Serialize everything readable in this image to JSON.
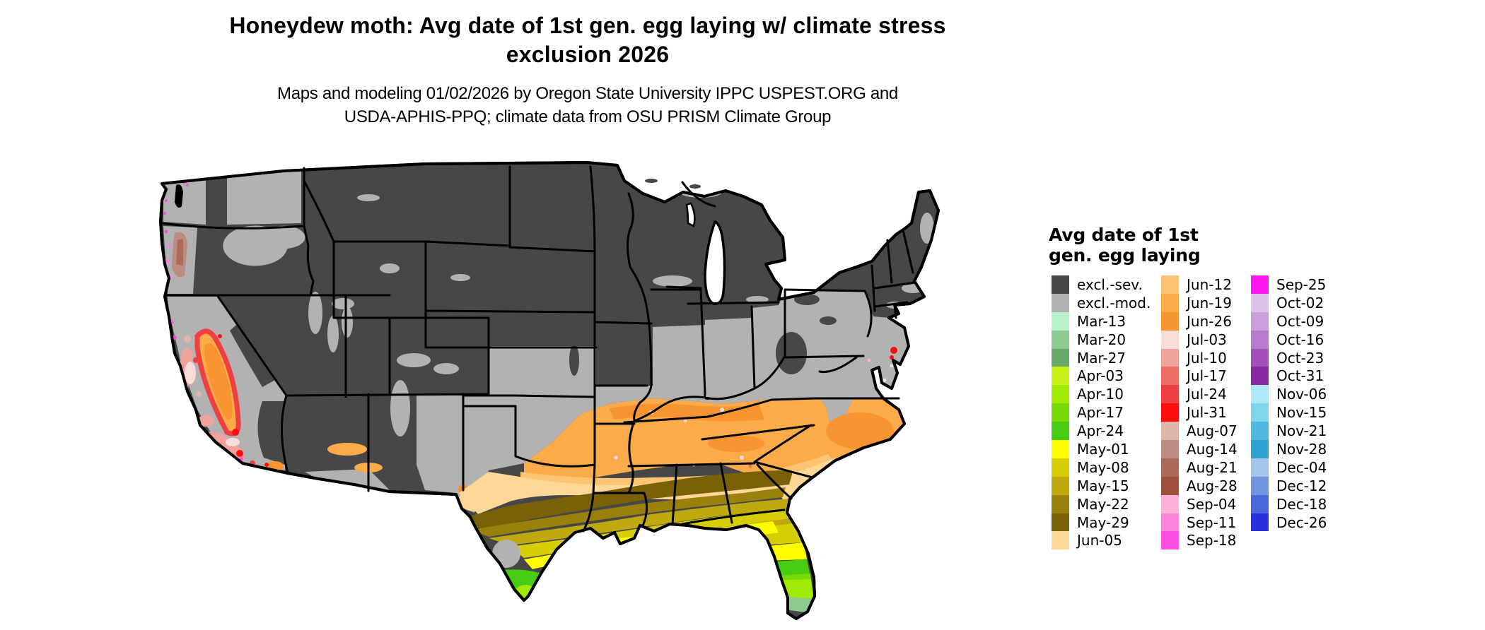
{
  "title": {
    "line1": "Honeydew moth: Avg date of 1st gen. egg laying w/ climate stress",
    "line2": "exclusion 2026"
  },
  "subtitle": {
    "line1": "Maps and modeling 01/02/2026 by Oregon State University IPPC USPEST.ORG and",
    "line2": "USDA-APHIS-PPQ; climate data from OSU PRISM Climate Group"
  },
  "legend": {
    "title_line1": "Avg date of 1st",
    "title_line2": "gen. egg laying",
    "columns": [
      [
        {
          "label": "excl.-sev.",
          "color": "#474747"
        },
        {
          "label": "excl.-mod.",
          "color": "#b2b2b2"
        },
        {
          "label": "Mar-13",
          "color": "#b9f1c9"
        },
        {
          "label": "Mar-20",
          "color": "#8ecb92"
        },
        {
          "label": "Mar-27",
          "color": "#68a96a"
        },
        {
          "label": "Apr-03",
          "color": "#c9f21a"
        },
        {
          "label": "Apr-10",
          "color": "#a0ea05"
        },
        {
          "label": "Apr-17",
          "color": "#79d907"
        },
        {
          "label": "Apr-24",
          "color": "#46cc10"
        },
        {
          "label": "May-01",
          "color": "#fdfd00"
        },
        {
          "label": "May-08",
          "color": "#d8cd05"
        },
        {
          "label": "May-15",
          "color": "#bfa90e"
        },
        {
          "label": "May-22",
          "color": "#9a810b"
        },
        {
          "label": "May-29",
          "color": "#7a6108"
        },
        {
          "label": "Jun-05",
          "color": "#fcd795"
        }
      ],
      [
        {
          "label": "Jun-12",
          "color": "#fdc573"
        },
        {
          "label": "Jun-19",
          "color": "#fcab4b"
        },
        {
          "label": "Jun-26",
          "color": "#f89530"
        },
        {
          "label": "Jul-03",
          "color": "#f7dcda"
        },
        {
          "label": "Jul-10",
          "color": "#f0a29d"
        },
        {
          "label": "Jul-17",
          "color": "#ec6e66"
        },
        {
          "label": "Jul-24",
          "color": "#ee4040"
        },
        {
          "label": "Jul-31",
          "color": "#fd0d0d"
        },
        {
          "label": "Aug-07",
          "color": "#dfb4a9"
        },
        {
          "label": "Aug-14",
          "color": "#bd8b80"
        },
        {
          "label": "Aug-21",
          "color": "#aa6b5a"
        },
        {
          "label": "Aug-28",
          "color": "#9f5140"
        },
        {
          "label": "Sep-04",
          "color": "#fbb4d8"
        },
        {
          "label": "Sep-11",
          "color": "#fb84dd"
        },
        {
          "label": "Sep-18",
          "color": "#fa50e2"
        }
      ],
      [
        {
          "label": "Sep-25",
          "color": "#fc17ef"
        },
        {
          "label": "Oct-02",
          "color": "#dcc3e9"
        },
        {
          "label": "Oct-09",
          "color": "#c9a0dc"
        },
        {
          "label": "Oct-16",
          "color": "#b77bce"
        },
        {
          "label": "Oct-23",
          "color": "#a34fbc"
        },
        {
          "label": "Oct-31",
          "color": "#8a28a6"
        },
        {
          "label": "Nov-06",
          "color": "#ade9f9"
        },
        {
          "label": "Nov-15",
          "color": "#7fd4ee"
        },
        {
          "label": "Nov-21",
          "color": "#51b8e0"
        },
        {
          "label": "Nov-28",
          "color": "#2ea3d3"
        },
        {
          "label": "Dec-04",
          "color": "#a4c5e8"
        },
        {
          "label": "Dec-12",
          "color": "#7295de"
        },
        {
          "label": "Dec-18",
          "color": "#4a67d9"
        },
        {
          "label": "Dec-26",
          "color": "#2b30df"
        }
      ]
    ]
  },
  "map": {
    "outline_color": "#000000",
    "water_color": "#ffffff"
  }
}
